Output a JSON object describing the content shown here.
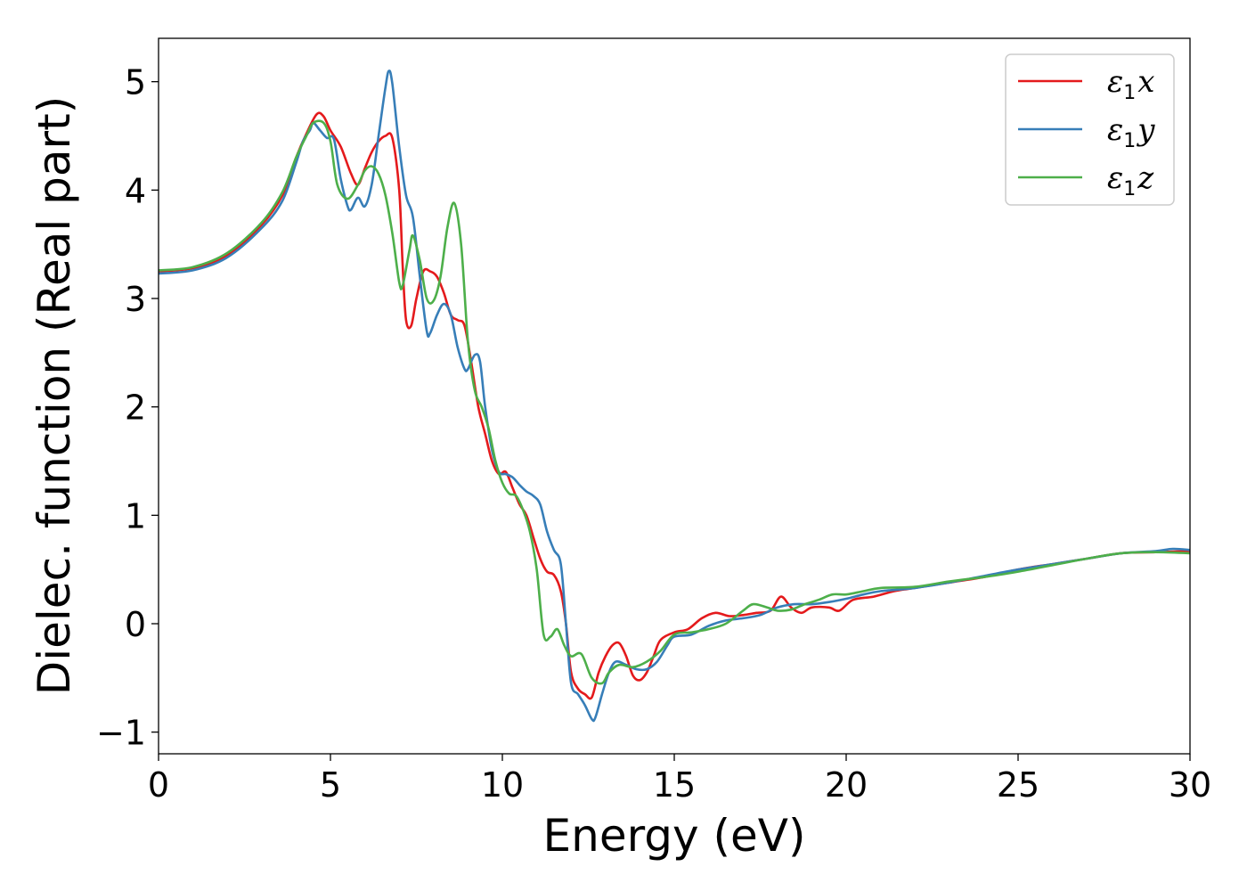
{
  "chart_data": {
    "type": "line",
    "xlabel": "Energy (eV)",
    "ylabel": "Dielec. function (Real part)",
    "xlim": [
      0,
      30
    ],
    "ylim": [
      -1.2,
      5.4
    ],
    "xticks": [
      0,
      5,
      10,
      15,
      20,
      25,
      30
    ],
    "xtick_labels": [
      "0",
      "5",
      "10",
      "15",
      "20",
      "25",
      "30"
    ],
    "yticks": [
      -1,
      0,
      1,
      2,
      3,
      4,
      5
    ],
    "ytick_labels": [
      "−1",
      "0",
      "1",
      "2",
      "3",
      "4",
      "5"
    ],
    "grid": false,
    "legend_position": "top-right",
    "series": [
      {
        "name": "ε1x",
        "legend_symbol": "ε",
        "legend_sub": "1",
        "legend_var": "x",
        "color": "#e41a1c",
        "points": [
          [
            0,
            3.25
          ],
          [
            1,
            3.28
          ],
          [
            2,
            3.4
          ],
          [
            3,
            3.68
          ],
          [
            3.6,
            3.95
          ],
          [
            4.0,
            4.3
          ],
          [
            4.3,
            4.52
          ],
          [
            4.6,
            4.7
          ],
          [
            4.8,
            4.68
          ],
          [
            5.0,
            4.55
          ],
          [
            5.3,
            4.4
          ],
          [
            5.6,
            4.15
          ],
          [
            5.8,
            4.05
          ],
          [
            6.0,
            4.2
          ],
          [
            6.2,
            4.35
          ],
          [
            6.4,
            4.45
          ],
          [
            6.6,
            4.5
          ],
          [
            6.8,
            4.48
          ],
          [
            7.0,
            4.0
          ],
          [
            7.1,
            3.3
          ],
          [
            7.2,
            2.8
          ],
          [
            7.35,
            2.75
          ],
          [
            7.5,
            3.0
          ],
          [
            7.7,
            3.25
          ],
          [
            7.9,
            3.25
          ],
          [
            8.1,
            3.2
          ],
          [
            8.3,
            3.05
          ],
          [
            8.5,
            2.85
          ],
          [
            8.7,
            2.8
          ],
          [
            8.9,
            2.75
          ],
          [
            9.1,
            2.4
          ],
          [
            9.3,
            2.0
          ],
          [
            9.5,
            1.75
          ],
          [
            9.7,
            1.5
          ],
          [
            9.9,
            1.38
          ],
          [
            10.1,
            1.4
          ],
          [
            10.3,
            1.25
          ],
          [
            10.5,
            1.1
          ],
          [
            10.7,
            1.0
          ],
          [
            10.9,
            0.8
          ],
          [
            11.1,
            0.6
          ],
          [
            11.3,
            0.48
          ],
          [
            11.5,
            0.45
          ],
          [
            11.7,
            0.3
          ],
          [
            11.85,
            0.0
          ],
          [
            12.0,
            -0.45
          ],
          [
            12.2,
            -0.6
          ],
          [
            12.4,
            -0.65
          ],
          [
            12.6,
            -0.68
          ],
          [
            12.8,
            -0.45
          ],
          [
            13.0,
            -0.3
          ],
          [
            13.2,
            -0.2
          ],
          [
            13.4,
            -0.18
          ],
          [
            13.6,
            -0.3
          ],
          [
            13.8,
            -0.48
          ],
          [
            14.0,
            -0.52
          ],
          [
            14.2,
            -0.45
          ],
          [
            14.4,
            -0.3
          ],
          [
            14.6,
            -0.15
          ],
          [
            15.0,
            -0.08
          ],
          [
            15.4,
            -0.05
          ],
          [
            15.8,
            0.05
          ],
          [
            16.2,
            0.1
          ],
          [
            16.6,
            0.07
          ],
          [
            17.0,
            0.08
          ],
          [
            17.4,
            0.1
          ],
          [
            17.8,
            0.12
          ],
          [
            18.1,
            0.25
          ],
          [
            18.4,
            0.15
          ],
          [
            18.7,
            0.1
          ],
          [
            19.0,
            0.15
          ],
          [
            19.5,
            0.15
          ],
          [
            19.8,
            0.12
          ],
          [
            20.2,
            0.22
          ],
          [
            20.8,
            0.25
          ],
          [
            21.4,
            0.3
          ],
          [
            22.0,
            0.33
          ],
          [
            23.0,
            0.38
          ],
          [
            24.0,
            0.43
          ],
          [
            25.0,
            0.5
          ],
          [
            26.0,
            0.55
          ],
          [
            27.0,
            0.6
          ],
          [
            28.0,
            0.65
          ],
          [
            29.0,
            0.66
          ],
          [
            30.0,
            0.67
          ]
        ]
      },
      {
        "name": "ε1y",
        "legend_symbol": "ε",
        "legend_sub": "1",
        "legend_var": "y",
        "color": "#377eb8",
        "points": [
          [
            0,
            3.23
          ],
          [
            1,
            3.26
          ],
          [
            2,
            3.38
          ],
          [
            3,
            3.65
          ],
          [
            3.6,
            3.9
          ],
          [
            4.0,
            4.25
          ],
          [
            4.2,
            4.45
          ],
          [
            4.4,
            4.55
          ],
          [
            4.5,
            4.62
          ],
          [
            4.7,
            4.55
          ],
          [
            4.9,
            4.48
          ],
          [
            5.1,
            4.47
          ],
          [
            5.3,
            4.1
          ],
          [
            5.5,
            3.85
          ],
          [
            5.6,
            3.82
          ],
          [
            5.8,
            3.93
          ],
          [
            6.0,
            3.85
          ],
          [
            6.2,
            4.05
          ],
          [
            6.4,
            4.5
          ],
          [
            6.6,
            4.95
          ],
          [
            6.7,
            5.1
          ],
          [
            6.8,
            4.98
          ],
          [
            7.0,
            4.4
          ],
          [
            7.2,
            3.95
          ],
          [
            7.4,
            3.75
          ],
          [
            7.6,
            3.2
          ],
          [
            7.8,
            2.7
          ],
          [
            7.9,
            2.68
          ],
          [
            8.1,
            2.85
          ],
          [
            8.3,
            2.95
          ],
          [
            8.5,
            2.85
          ],
          [
            8.7,
            2.55
          ],
          [
            8.9,
            2.35
          ],
          [
            9.0,
            2.35
          ],
          [
            9.2,
            2.48
          ],
          [
            9.35,
            2.42
          ],
          [
            9.5,
            2.0
          ],
          [
            9.7,
            1.6
          ],
          [
            9.9,
            1.4
          ],
          [
            10.1,
            1.38
          ],
          [
            10.3,
            1.35
          ],
          [
            10.5,
            1.28
          ],
          [
            10.7,
            1.22
          ],
          [
            10.9,
            1.18
          ],
          [
            11.1,
            1.1
          ],
          [
            11.3,
            0.85
          ],
          [
            11.5,
            0.68
          ],
          [
            11.7,
            0.55
          ],
          [
            11.85,
            0.0
          ],
          [
            12.0,
            -0.55
          ],
          [
            12.2,
            -0.65
          ],
          [
            12.4,
            -0.75
          ],
          [
            12.6,
            -0.88
          ],
          [
            12.7,
            -0.87
          ],
          [
            12.9,
            -0.65
          ],
          [
            13.1,
            -0.45
          ],
          [
            13.3,
            -0.35
          ],
          [
            13.6,
            -0.38
          ],
          [
            13.9,
            -0.42
          ],
          [
            14.2,
            -0.42
          ],
          [
            14.5,
            -0.35
          ],
          [
            14.8,
            -0.2
          ],
          [
            15.0,
            -0.12
          ],
          [
            15.5,
            -0.1
          ],
          [
            16.0,
            -0.02
          ],
          [
            16.5,
            0.03
          ],
          [
            17.0,
            0.05
          ],
          [
            17.5,
            0.08
          ],
          [
            18.0,
            0.15
          ],
          [
            18.5,
            0.18
          ],
          [
            19.0,
            0.18
          ],
          [
            19.5,
            0.2
          ],
          [
            20.0,
            0.23
          ],
          [
            20.5,
            0.27
          ],
          [
            21.0,
            0.3
          ],
          [
            22.0,
            0.33
          ],
          [
            23.0,
            0.38
          ],
          [
            24.0,
            0.44
          ],
          [
            25.0,
            0.5
          ],
          [
            26.0,
            0.55
          ],
          [
            27.0,
            0.6
          ],
          [
            28.0,
            0.65
          ],
          [
            29.0,
            0.67
          ],
          [
            29.5,
            0.69
          ],
          [
            30.0,
            0.68
          ]
        ]
      },
      {
        "name": "ε1z",
        "legend_symbol": "ε",
        "legend_sub": "1",
        "legend_var": "z",
        "color": "#4daf4a",
        "points": [
          [
            0,
            3.26
          ],
          [
            1,
            3.29
          ],
          [
            2,
            3.42
          ],
          [
            3,
            3.7
          ],
          [
            3.6,
            3.98
          ],
          [
            4.0,
            4.3
          ],
          [
            4.3,
            4.5
          ],
          [
            4.5,
            4.62
          ],
          [
            4.8,
            4.62
          ],
          [
            5.0,
            4.45
          ],
          [
            5.2,
            4.05
          ],
          [
            5.5,
            3.92
          ],
          [
            5.8,
            4.05
          ],
          [
            6.0,
            4.18
          ],
          [
            6.2,
            4.22
          ],
          [
            6.4,
            4.15
          ],
          [
            6.6,
            3.95
          ],
          [
            6.8,
            3.6
          ],
          [
            7.0,
            3.15
          ],
          [
            7.1,
            3.12
          ],
          [
            7.3,
            3.45
          ],
          [
            7.4,
            3.58
          ],
          [
            7.6,
            3.35
          ],
          [
            7.8,
            3.0
          ],
          [
            8.0,
            2.98
          ],
          [
            8.2,
            3.2
          ],
          [
            8.4,
            3.65
          ],
          [
            8.6,
            3.88
          ],
          [
            8.8,
            3.5
          ],
          [
            9.0,
            2.6
          ],
          [
            9.2,
            2.15
          ],
          [
            9.4,
            2.0
          ],
          [
            9.6,
            1.8
          ],
          [
            9.8,
            1.5
          ],
          [
            10.0,
            1.3
          ],
          [
            10.2,
            1.2
          ],
          [
            10.4,
            1.18
          ],
          [
            10.6,
            1.05
          ],
          [
            10.8,
            0.85
          ],
          [
            11.0,
            0.5
          ],
          [
            11.2,
            -0.1
          ],
          [
            11.4,
            -0.12
          ],
          [
            11.6,
            -0.05
          ],
          [
            11.8,
            -0.2
          ],
          [
            12.0,
            -0.3
          ],
          [
            12.3,
            -0.28
          ],
          [
            12.6,
            -0.5
          ],
          [
            12.9,
            -0.55
          ],
          [
            13.1,
            -0.45
          ],
          [
            13.4,
            -0.38
          ],
          [
            13.8,
            -0.4
          ],
          [
            14.2,
            -0.35
          ],
          [
            14.6,
            -0.25
          ],
          [
            15.0,
            -0.1
          ],
          [
            15.5,
            -0.08
          ],
          [
            16.0,
            -0.05
          ],
          [
            16.5,
            0.0
          ],
          [
            17.0,
            0.12
          ],
          [
            17.3,
            0.18
          ],
          [
            17.7,
            0.15
          ],
          [
            18.0,
            0.12
          ],
          [
            18.4,
            0.13
          ],
          [
            18.8,
            0.18
          ],
          [
            19.2,
            0.22
          ],
          [
            19.6,
            0.27
          ],
          [
            20.0,
            0.27
          ],
          [
            20.5,
            0.3
          ],
          [
            21.0,
            0.33
          ],
          [
            22.0,
            0.34
          ],
          [
            23.0,
            0.39
          ],
          [
            24.0,
            0.43
          ],
          [
            25.0,
            0.48
          ],
          [
            26.0,
            0.54
          ],
          [
            27.0,
            0.6
          ],
          [
            28.0,
            0.65
          ],
          [
            29.0,
            0.66
          ],
          [
            30.0,
            0.65
          ]
        ]
      }
    ]
  }
}
